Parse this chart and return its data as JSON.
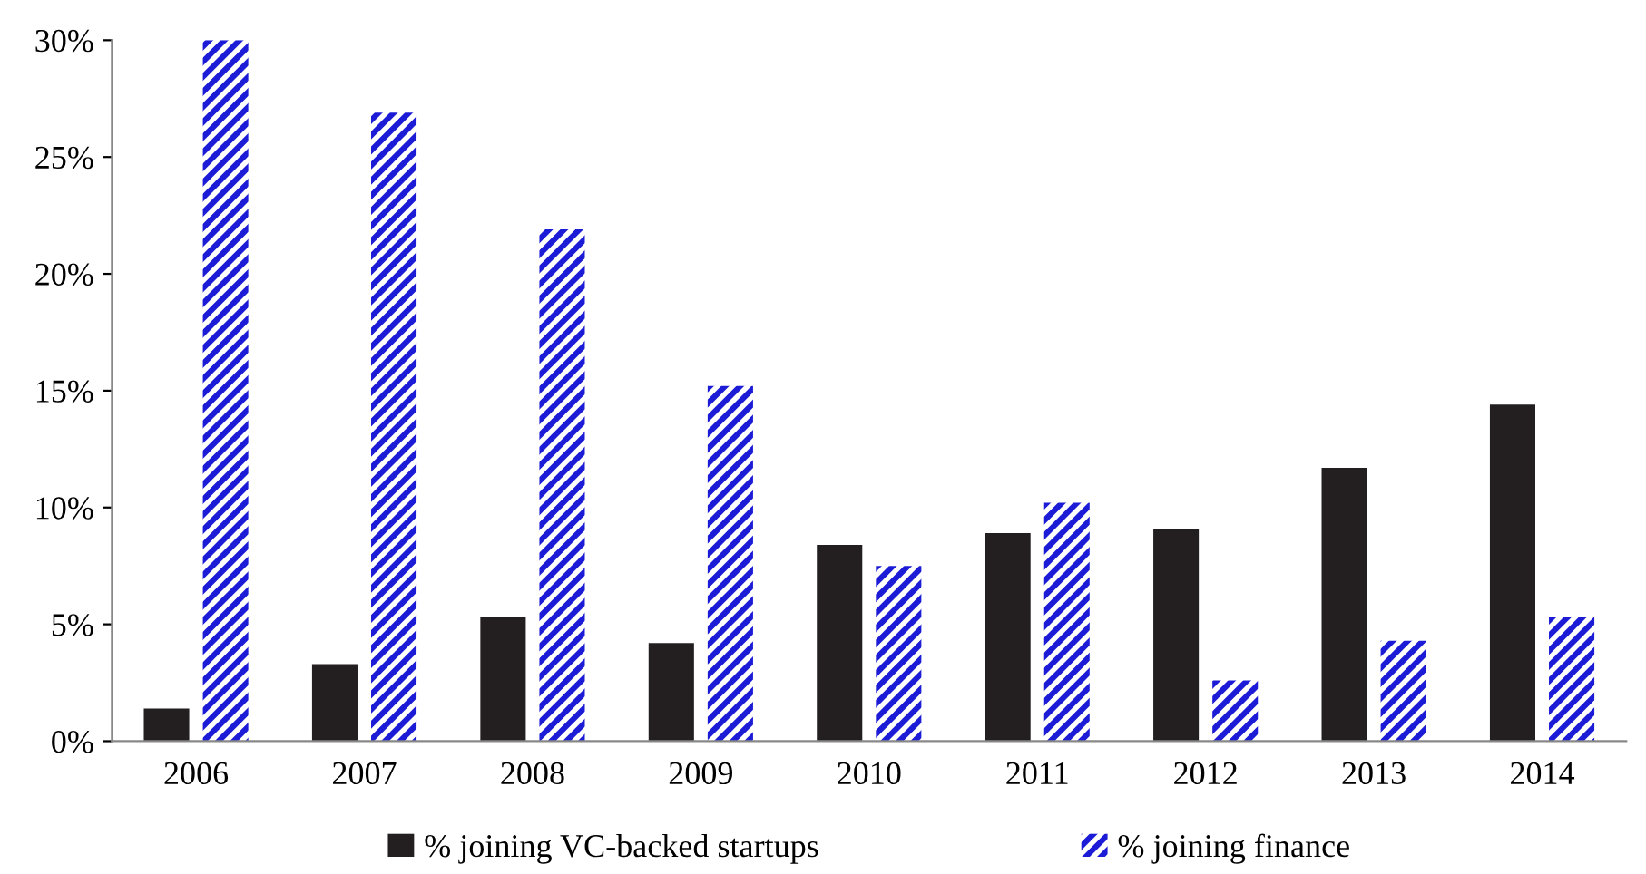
{
  "chart_data": {
    "type": "bar",
    "categories": [
      "2006",
      "2007",
      "2008",
      "2009",
      "2010",
      "2011",
      "2012",
      "2013",
      "2014"
    ],
    "series": [
      {
        "name": "% joining VC-backed startups",
        "color": "#231f20",
        "values": [
          1.4,
          3.3,
          5.3,
          4.2,
          8.4,
          8.9,
          9.1,
          11.7,
          14.4
        ]
      },
      {
        "name": "% joining finance",
        "color": "#1c1cd6",
        "values": [
          30,
          26.9,
          21.9,
          15.2,
          7.5,
          10.2,
          2.6,
          4.3,
          5.3
        ]
      }
    ],
    "ylim": [
      0,
      30
    ],
    "yticks": [
      {
        "value": 0,
        "label": "0%"
      },
      {
        "value": 5,
        "label": "5%"
      },
      {
        "value": 10,
        "label": "10%"
      },
      {
        "value": 15,
        "label": "15%"
      },
      {
        "value": 20,
        "label": "20%"
      },
      {
        "value": 25,
        "label": "25%"
      },
      {
        "value": 30,
        "label": "30%"
      }
    ],
    "grid": false,
    "legend": "bottom"
  }
}
